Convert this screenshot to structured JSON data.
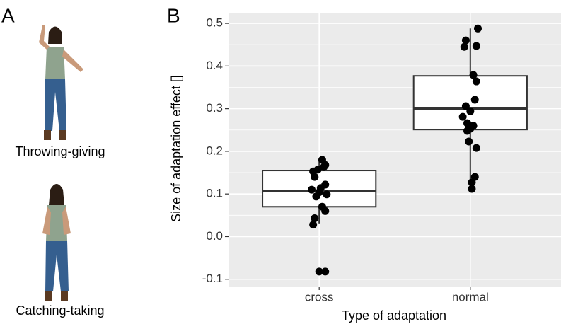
{
  "panel_a": {
    "label": "A",
    "figures": [
      "Throwing-giving",
      "Catching-taking"
    ]
  },
  "chart_data": {
    "type": "boxplot",
    "panel_label": "B",
    "xlabel": "Type of adaptation",
    "ylabel": "Size of adaptation effect []",
    "categories": [
      "cross",
      "normal"
    ],
    "xlim": [
      0.4,
      2.6
    ],
    "ylim": [
      -0.117,
      0.525
    ],
    "yticks": [
      -0.1,
      {
        "value": 0,
        "label": "0.0"
      },
      0.1,
      0.2,
      0.3,
      0.4,
      0.5
    ],
    "yminor": [
      -0.05,
      0.05,
      0.15,
      0.25,
      0.35,
      0.45
    ],
    "grid": true,
    "boxes": [
      {
        "whisker_low": 0.031,
        "q1": 0.07,
        "median": 0.107,
        "q3": 0.155,
        "whisker_high": 0.18
      },
      {
        "whisker_low": 0.11,
        "q1": 0.251,
        "median": 0.301,
        "q3": 0.377,
        "whisker_high": 0.488
      }
    ],
    "points": {
      "color": "#000000",
      "x": [
        1.02,
        0.96,
        0.99,
        1.03,
        1.04,
        0.97,
        0.95,
        1.01,
        1.04,
        1.0,
        0.98,
        1.05,
        1.02,
        1.04,
        0.97,
        0.96,
        1.0,
        1.04,
        2.05,
        1.97,
        2.04,
        1.96,
        2.02,
        2.04,
        2.03,
        1.97,
        2.0,
        1.95,
        1.98,
        2.02,
        1.98,
        2.0,
        1.99,
        2.04,
        2.03,
        2.01,
        2.01
      ],
      "y": [
        0.18,
        0.153,
        0.157,
        0.163,
        0.168,
        0.14,
        0.11,
        0.114,
        0.122,
        0.104,
        0.094,
        0.099,
        0.07,
        0.06,
        0.043,
        0.028,
        -0.082,
        -0.082,
        0.488,
        0.46,
        0.447,
        0.445,
        0.379,
        0.364,
        0.321,
        0.306,
        0.294,
        0.281,
        0.266,
        0.26,
        0.248,
        0.253,
        0.223,
        0.208,
        0.14,
        0.127,
        0.112
      ]
    }
  }
}
